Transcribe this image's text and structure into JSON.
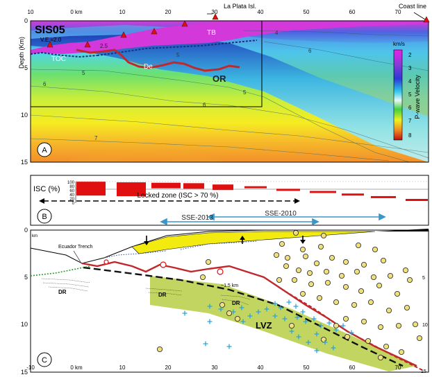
{
  "panelA": {
    "profile": "SIS05",
    "ve": "V.E.=2.0",
    "place": "La Plata Isl.",
    "coast": "Coast line",
    "ylabel": "Depth (Km)",
    "topTicks": [
      "10",
      "0 km",
      "10",
      "20",
      "30",
      "40",
      "50",
      "60",
      "70"
    ],
    "yTicks": [
      "0",
      "5",
      "10",
      "15"
    ],
    "labels": {
      "tb": "TB",
      "toc": "TOC",
      "de": "De",
      "or": "OR",
      "v25": "2.5"
    },
    "contours": [
      "4",
      "6",
      "5",
      "5",
      "6",
      "5",
      "6",
      "7"
    ],
    "colorbar": {
      "unit": "km/s",
      "label": "P-wave Velocity",
      "ticks": [
        "2",
        "3",
        "4",
        "5",
        "6",
        "7",
        "8"
      ]
    },
    "letter": "A"
  },
  "panelB": {
    "title": "ISC (%)",
    "ticks": [
      "100",
      "80",
      "60",
      "40",
      "20",
      "0"
    ],
    "locked": "Locked zone (ISC > 70 %)",
    "letter": "B",
    "isc": [
      93,
      90,
      88,
      86,
      80,
      72,
      60,
      50,
      38,
      26
    ]
  },
  "panelC": {
    "sse2013": "SSE-2013",
    "sse2010": "SSE-2010",
    "trench": "Ecuador Trench",
    "dr": "DR",
    "lvz": "LVZ",
    "km": "~1.5 km",
    "kmUnit": "km",
    "bottomTicks": [
      "-10",
      "0 km",
      "10",
      "20",
      "30",
      "40",
      "50",
      "60",
      "70"
    ],
    "yTicks": [
      "0",
      "5",
      "10",
      "15"
    ],
    "letter": "C"
  },
  "colors": {
    "red": "#e01010",
    "magenta": "#e020e0",
    "yellow": "#f3ea10",
    "lvz": "#c2d561",
    "cyan": "#2aa4d8",
    "circle": "#efe07f"
  }
}
